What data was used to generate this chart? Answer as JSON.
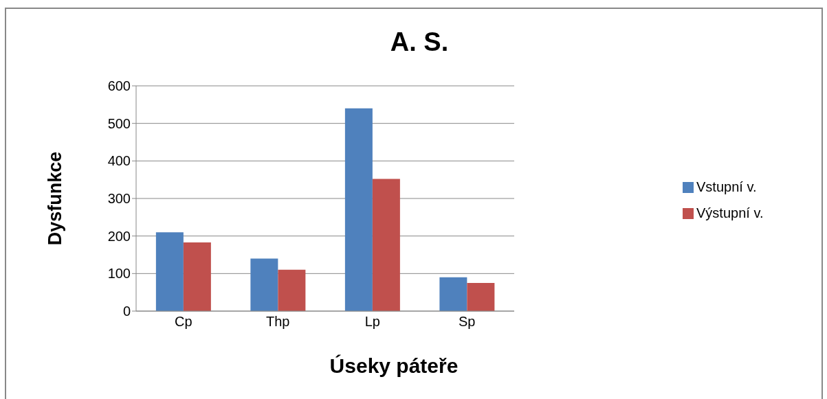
{
  "chart_data": {
    "type": "bar",
    "title": "A. S.",
    "xlabel": "Úseky páteře",
    "ylabel": "Dysfunkce",
    "categories": [
      "Cp",
      "Thp",
      "Lp",
      "Sp"
    ],
    "series": [
      {
        "name": "Vstupní v.",
        "color": "#4f81bd",
        "values": [
          210,
          140,
          540,
          90
        ]
      },
      {
        "name": "Výstupní v.",
        "color": "#c0504d",
        "values": [
          183,
          110,
          352,
          75
        ]
      }
    ],
    "ylim": [
      0,
      600
    ],
    "yticks": [
      0,
      100,
      200,
      300,
      400,
      500,
      600
    ],
    "grid": "y",
    "legend": "right"
  }
}
